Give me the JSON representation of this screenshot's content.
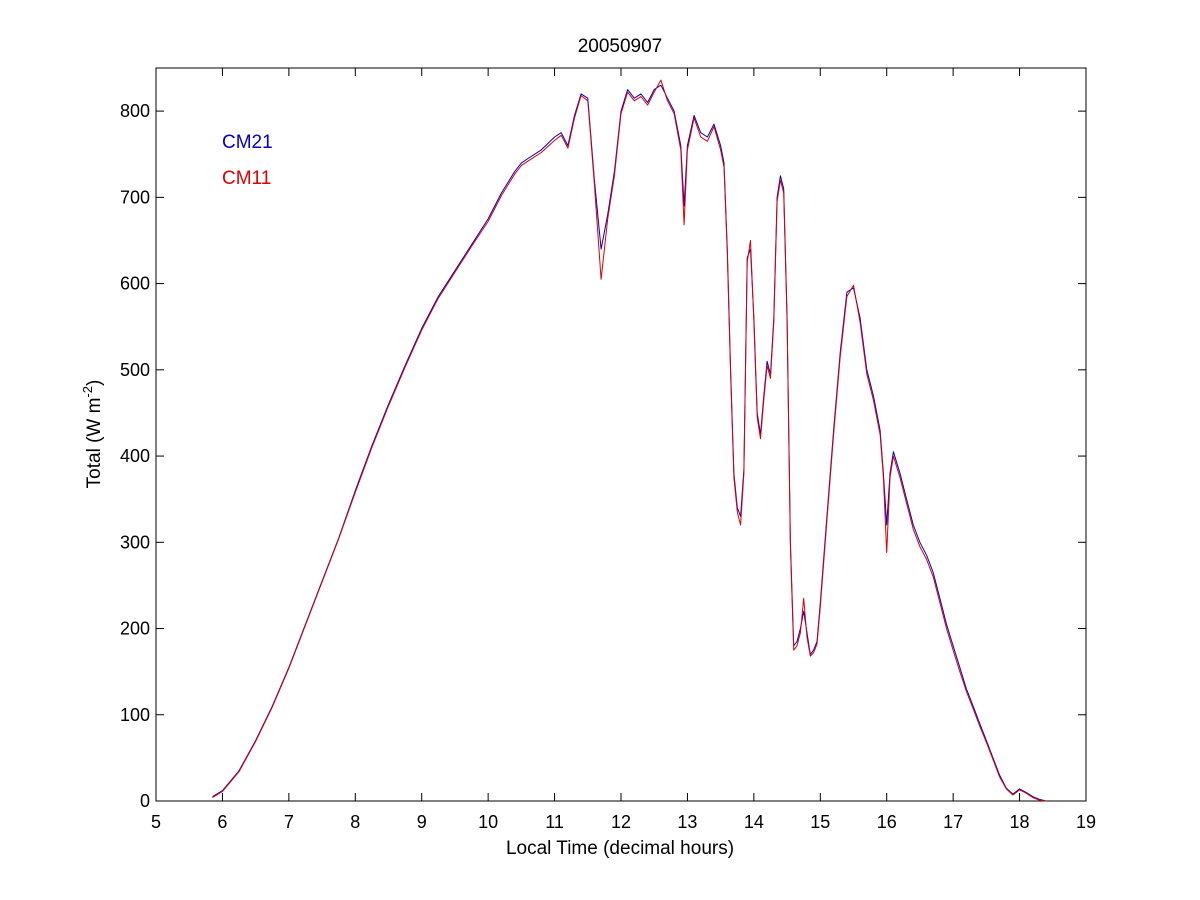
{
  "chart_data": {
    "type": "line",
    "title": "20050907",
    "xlabel": "Local Time (decimal hours)",
    "ylabel": "Total (W m",
    "ylabel_exponent": "-2",
    "ylabel_close": ")",
    "xlim": [
      5,
      19
    ],
    "ylim": [
      0,
      850
    ],
    "xticks": [
      "5",
      "6",
      "7",
      "8",
      "9",
      "10",
      "11",
      "12",
      "13",
      "14",
      "15",
      "16",
      "17",
      "18",
      "19"
    ],
    "yticks": [
      "0",
      "100",
      "200",
      "300",
      "400",
      "500",
      "600",
      "700",
      "800"
    ],
    "grid": false,
    "legend_position": "top-left",
    "series": [
      {
        "name": "CM21",
        "color": "#0000cc",
        "x": [
          5.85,
          6.0,
          6.25,
          6.5,
          6.75,
          7.0,
          7.25,
          7.5,
          7.75,
          8.0,
          8.25,
          8.5,
          8.75,
          9.0,
          9.25,
          9.5,
          9.75,
          10.0,
          10.2,
          10.4,
          10.5,
          10.6,
          10.8,
          11.0,
          11.1,
          11.2,
          11.3,
          11.4,
          11.5,
          11.6,
          11.7,
          11.8,
          11.9,
          12.0,
          12.1,
          12.2,
          12.3,
          12.4,
          12.5,
          12.6,
          12.7,
          12.8,
          12.9,
          12.95,
          13.0,
          13.1,
          13.2,
          13.3,
          13.4,
          13.5,
          13.55,
          13.6,
          13.65,
          13.7,
          13.75,
          13.8,
          13.85,
          13.9,
          13.95,
          14.0,
          14.05,
          14.1,
          14.15,
          14.2,
          14.25,
          14.3,
          14.35,
          14.4,
          14.45,
          14.5,
          14.55,
          14.6,
          14.65,
          14.7,
          14.75,
          14.8,
          14.85,
          14.9,
          14.95,
          15.0,
          15.1,
          15.2,
          15.3,
          15.4,
          15.5,
          15.6,
          15.7,
          15.8,
          15.9,
          15.95,
          16.0,
          16.05,
          16.1,
          16.2,
          16.3,
          16.4,
          16.5,
          16.6,
          16.7,
          16.8,
          16.9,
          17.0,
          17.1,
          17.2,
          17.3,
          17.4,
          17.5,
          17.6,
          17.7,
          17.8,
          17.9,
          18.0,
          18.1,
          18.2,
          18.3,
          18.4
        ],
        "y": [
          5,
          12,
          35,
          70,
          110,
          155,
          205,
          255,
          305,
          360,
          412,
          460,
          505,
          548,
          585,
          615,
          645,
          675,
          705,
          730,
          740,
          745,
          755,
          770,
          775,
          760,
          795,
          820,
          815,
          720,
          640,
          680,
          730,
          800,
          825,
          815,
          820,
          810,
          825,
          830,
          815,
          800,
          760,
          690,
          760,
          795,
          775,
          770,
          785,
          760,
          740,
          640,
          500,
          380,
          340,
          330,
          385,
          630,
          640,
          560,
          450,
          425,
          470,
          510,
          495,
          560,
          700,
          725,
          710,
          560,
          300,
          180,
          185,
          200,
          220,
          195,
          170,
          175,
          185,
          230,
          330,
          430,
          520,
          590,
          595,
          560,
          500,
          470,
          430,
          380,
          320,
          380,
          405,
          380,
          350,
          320,
          300,
          285,
          265,
          235,
          205,
          180,
          155,
          130,
          110,
          90,
          70,
          50,
          30,
          15,
          8,
          14,
          10,
          5,
          2,
          0
        ]
      },
      {
        "name": "CM11",
        "color": "#dd0000",
        "x": [
          5.85,
          6.0,
          6.25,
          6.5,
          6.75,
          7.0,
          7.25,
          7.5,
          7.75,
          8.0,
          8.25,
          8.5,
          8.75,
          9.0,
          9.25,
          9.5,
          9.75,
          10.0,
          10.2,
          10.4,
          10.5,
          10.6,
          10.8,
          11.0,
          11.1,
          11.2,
          11.3,
          11.4,
          11.5,
          11.6,
          11.7,
          11.8,
          11.9,
          12.0,
          12.1,
          12.2,
          12.3,
          12.4,
          12.5,
          12.6,
          12.7,
          12.8,
          12.9,
          12.95,
          13.0,
          13.1,
          13.2,
          13.3,
          13.4,
          13.5,
          13.55,
          13.6,
          13.65,
          13.7,
          13.75,
          13.8,
          13.85,
          13.9,
          13.95,
          14.0,
          14.05,
          14.1,
          14.15,
          14.2,
          14.25,
          14.3,
          14.35,
          14.4,
          14.45,
          14.5,
          14.55,
          14.6,
          14.65,
          14.7,
          14.75,
          14.8,
          14.85,
          14.9,
          14.95,
          15.0,
          15.1,
          15.2,
          15.3,
          15.4,
          15.5,
          15.6,
          15.7,
          15.8,
          15.9,
          15.95,
          16.0,
          16.05,
          16.1,
          16.2,
          16.3,
          16.4,
          16.5,
          16.6,
          16.7,
          16.8,
          16.9,
          17.0,
          17.1,
          17.2,
          17.3,
          17.4,
          17.5,
          17.6,
          17.7,
          17.8,
          17.9,
          18.0,
          18.1,
          18.2,
          18.3,
          18.4
        ],
        "y": [
          4,
          11,
          34,
          69,
          109,
          154,
          204,
          254,
          304,
          358,
          410,
          458,
          503,
          546,
          583,
          613,
          643,
          672,
          702,
          727,
          737,
          742,
          752,
          766,
          772,
          757,
          792,
          818,
          812,
          715,
          605,
          675,
          725,
          797,
          822,
          812,
          817,
          807,
          822,
          836,
          812,
          797,
          755,
          668,
          755,
          792,
          770,
          765,
          782,
          755,
          735,
          635,
          495,
          375,
          335,
          320,
          380,
          625,
          650,
          555,
          445,
          420,
          465,
          505,
          490,
          555,
          695,
          720,
          705,
          555,
          295,
          175,
          180,
          195,
          235,
          190,
          168,
          172,
          182,
          225,
          325,
          425,
          515,
          585,
          598,
          555,
          495,
          465,
          425,
          375,
          288,
          375,
          400,
          375,
          345,
          315,
          295,
          280,
          260,
          230,
          200,
          175,
          150,
          127,
          107,
          87,
          68,
          48,
          28,
          14,
          7,
          13,
          9,
          4,
          1,
          0
        ]
      }
    ]
  }
}
